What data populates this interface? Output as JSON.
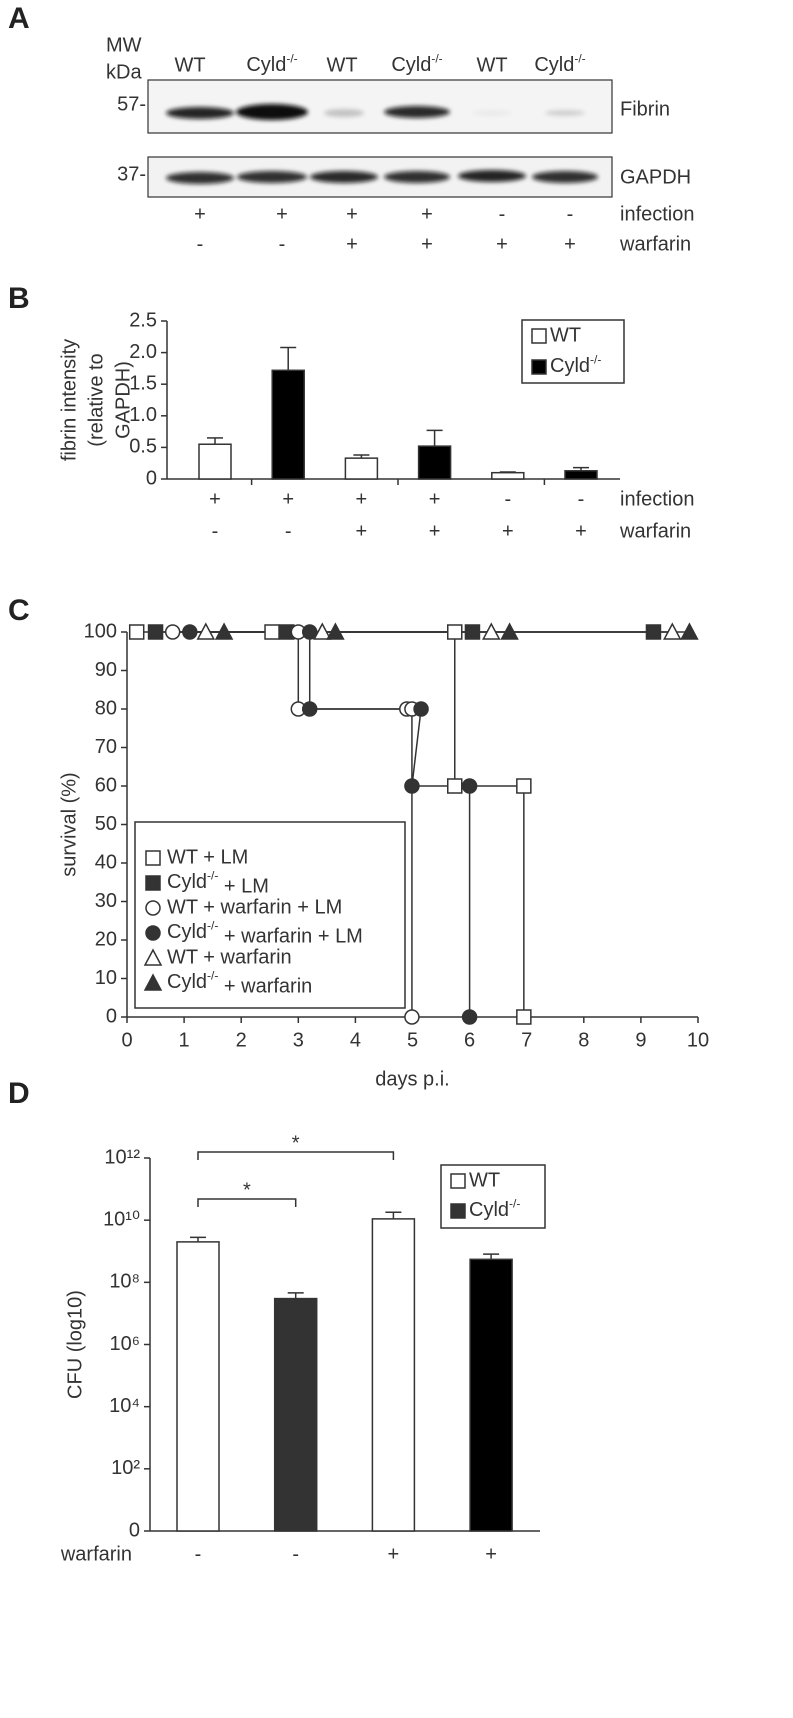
{
  "blot": {
    "label": "A",
    "mw_label": [
      "MW",
      "kDa"
    ],
    "lanes": [
      "WT",
      {
        "text": "Cyld",
        "sup": "-/-"
      },
      "WT",
      {
        "text": "Cyld",
        "sup": "-/-"
      },
      "WT",
      {
        "text": "Cyld",
        "sup": "-/-"
      }
    ],
    "markers": [
      "57-",
      "37-"
    ],
    "proteins": [
      "Fibrin",
      "GAPDH"
    ],
    "conditions": [
      {
        "name": "infection",
        "signs": [
          "+",
          "+",
          "+",
          "+",
          "-",
          "-"
        ]
      },
      {
        "name": "warfarin",
        "signs": [
          "-",
          "-",
          "+",
          "+",
          "+",
          "+"
        ]
      }
    ]
  },
  "chart_data": [
    {
      "label": "B",
      "type": "bar",
      "ylabel": [
        "fibrin intensity",
        "(relative to",
        "GAPDH)"
      ],
      "ylim": [
        0,
        2.5
      ],
      "yticks": [
        0,
        0.5,
        {
          "value": 1,
          "label": "1.0"
        },
        1.5,
        {
          "value": 2,
          "label": "2.0"
        },
        2.5
      ],
      "legend": "upper right",
      "series": [
        {
          "name": "WT",
          "color": "#ffffff",
          "values": [
            0.55,
            null,
            0.33,
            null,
            0.1,
            null
          ],
          "errors": [
            0.1,
            null,
            0.05,
            null,
            0.01,
            null
          ]
        },
        {
          "name": {
            "text": "Cyld",
            "sup": "-/-"
          },
          "color": "#000000",
          "values": [
            null,
            1.72,
            null,
            0.52,
            null,
            0.13
          ],
          "errors": [
            null,
            0.36,
            null,
            0.25,
            null,
            0.05
          ]
        }
      ],
      "conditions": [
        {
          "name": "infection",
          "signs": [
            "+",
            "+",
            "+",
            "+",
            "-",
            "-"
          ]
        },
        {
          "name": "warfarin",
          "signs": [
            "-",
            "-",
            "+",
            "+",
            "+",
            "+"
          ]
        }
      ]
    },
    {
      "label": "C",
      "type": "line",
      "xlabel": "days p.i.",
      "ylabel": "survival (%)",
      "xlim": [
        0,
        10
      ],
      "xticks": [
        0,
        1,
        2,
        3,
        4,
        5,
        6,
        7,
        8,
        9,
        10
      ],
      "ylim": [
        0,
        100
      ],
      "yticks": [
        0,
        10,
        20,
        30,
        40,
        50,
        60,
        70,
        80,
        90,
        100
      ],
      "legend": "lower left",
      "series": [
        {
          "name": "WT + LM",
          "marker": "square",
          "color": "#ffffff",
          "x": [
            0.17,
            2.54,
            5.74,
            5.74,
            6.95,
            6.95
          ],
          "values": [
            100,
            100,
            100,
            60,
            60,
            0
          ]
        },
        {
          "name": {
            "text": "Cyld",
            "sup": "-/-",
            "tail": " + LM"
          },
          "marker": "square",
          "color": "#333333",
          "x": [
            0.5,
            2.8,
            6.05,
            9.22
          ],
          "values": [
            100,
            100,
            100,
            100
          ]
        },
        {
          "name": "WT + warfarin + LM",
          "marker": "circle",
          "color": "#ffffff",
          "x": [
            0.8,
            3.0,
            3.0,
            4.9,
            4.99,
            4.99
          ],
          "values": [
            100,
            100,
            80,
            80,
            80,
            0
          ]
        },
        {
          "name": {
            "text": "Cyld",
            "sup": "-/-",
            "tail": "  + warfarin + LM"
          },
          "marker": "circle",
          "color": "#333333",
          "x": [
            1.1,
            3.2,
            3.2,
            5.15,
            4.99,
            6.0,
            6.0
          ],
          "values": [
            100,
            100,
            80,
            80,
            60,
            60,
            0
          ]
        },
        {
          "name": "WT + warfarin",
          "marker": "triangle",
          "color": "#ffffff",
          "x": [
            1.38,
            3.42,
            6.38,
            9.55
          ],
          "values": [
            100,
            100,
            100,
            100
          ]
        },
        {
          "name": {
            "text": "Cyld",
            "sup": "-/-",
            "tail": "  + warfarin"
          },
          "marker": "triangle",
          "color": "#333333",
          "x": [
            1.7,
            3.65,
            6.7,
            9.85
          ],
          "values": [
            100,
            100,
            100,
            100
          ]
        }
      ]
    },
    {
      "label": "D",
      "type": "bar",
      "log": true,
      "ylabel": "CFU (log10)",
      "xlabel": "warfarin",
      "ylim": [
        1,
        1000000000000
      ],
      "yticks": [
        {
          "value": 1,
          "label": "0"
        },
        {
          "value": 100,
          "label": "10²"
        },
        {
          "value": 10000,
          "label": "10⁴"
        },
        {
          "value": 1000000,
          "label": "10⁶"
        },
        {
          "value": 100000000,
          "label": "10⁸"
        },
        {
          "value": 10000000000,
          "label": "10¹⁰"
        },
        {
          "value": 1000000000000,
          "label": "10¹²"
        }
      ],
      "categories": [
        "-",
        "-",
        "+",
        "+"
      ],
      "legend": "upper right",
      "series": [
        {
          "name": "WT",
          "color": "#ffffff",
          "values": [
            2000000000,
            null,
            11000000000,
            null
          ],
          "errors": [
            800000000,
            null,
            7000000000,
            null
          ]
        },
        {
          "name": {
            "text": "Cyld",
            "sup": "-/-"
          },
          "color": "#333333",
          "colors": [
            null,
            "#333333",
            null,
            "#000000"
          ],
          "values": [
            null,
            30000000,
            null,
            550000000
          ],
          "errors": [
            null,
            16000000,
            null,
            260000000
          ]
        }
      ],
      "annotations": [
        {
          "text": "*",
          "from": 0,
          "to": 1
        },
        {
          "text": "*",
          "from": 0,
          "to": 2
        }
      ]
    }
  ]
}
